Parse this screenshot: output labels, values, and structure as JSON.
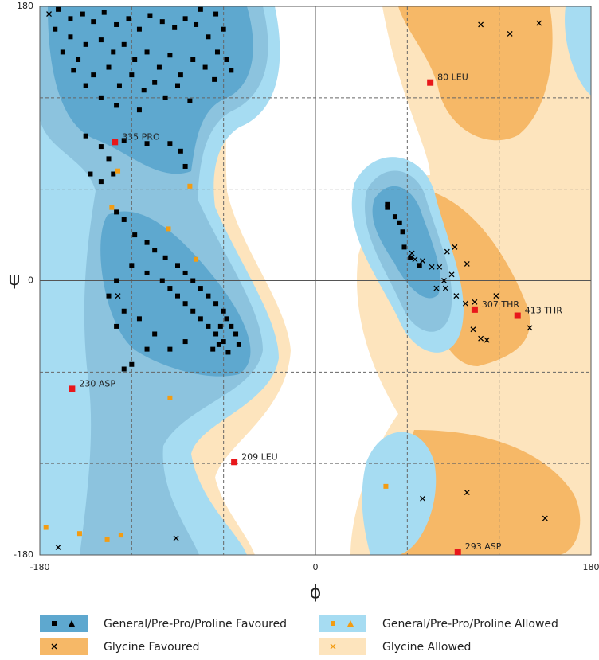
{
  "chart_data": {
    "type": "scatter",
    "x_label": "ϕ",
    "y_label": "ψ",
    "xlim": [
      -180,
      180
    ],
    "ylim": [
      -180,
      180
    ],
    "xticks": [
      -180,
      0,
      180
    ],
    "yticks": [
      -180,
      0,
      180
    ],
    "dashed_grid": [
      -120,
      -60,
      60,
      120
    ],
    "series": [
      {
        "name": "General/Pre-Pro/Proline Favoured",
        "color": "#000000",
        "marker": "square",
        "region_color": "#5ea8cf",
        "x": [
          -168,
          -160,
          -152,
          -145,
          -138,
          -130,
          -122,
          -115,
          -108,
          -100,
          -92,
          -85,
          -78,
          -70,
          -64,
          -58,
          -55,
          -160,
          -150,
          -140,
          -132,
          -125,
          -118,
          -110,
          -102,
          -95,
          -88,
          -80,
          -72,
          -66,
          -155,
          -145,
          -135,
          -128,
          -120,
          -112,
          -105,
          -98,
          -90,
          -82,
          -140,
          -130,
          -115,
          -150,
          -158,
          -165,
          -170,
          -60,
          -65,
          -75,
          -150,
          -140,
          -135,
          -125,
          -110,
          -95,
          -88,
          -85,
          -140,
          -132,
          -147,
          -130,
          -125,
          -118,
          -110,
          -105,
          -98,
          -90,
          -85,
          -80,
          -75,
          -70,
          -65,
          -60,
          -58,
          -55,
          -52,
          -60,
          -65,
          -70,
          -75,
          -80,
          -85,
          -90,
          -95,
          -100,
          -110,
          -120,
          -130,
          -135,
          -125,
          -115,
          -105,
          -95,
          -85,
          -120,
          -130,
          -110,
          -57,
          -63,
          -67,
          -62,
          -50,
          -125,
          47,
          52,
          55,
          57,
          58,
          62,
          47,
          68
        ],
        "y": [
          178,
          172,
          175,
          170,
          176,
          168,
          172,
          165,
          174,
          170,
          166,
          172,
          168,
          160,
          150,
          145,
          138,
          160,
          155,
          158,
          150,
          155,
          145,
          150,
          140,
          148,
          135,
          145,
          140,
          132,
          145,
          135,
          140,
          128,
          135,
          125,
          130,
          120,
          128,
          118,
          120,
          115,
          112,
          128,
          138,
          150,
          165,
          165,
          175,
          178,
          95,
          88,
          80,
          92,
          90,
          90,
          85,
          75,
          65,
          70,
          70,
          45,
          40,
          30,
          25,
          20,
          15,
          10,
          5,
          0,
          -5,
          -10,
          -15,
          -20,
          -25,
          -30,
          -35,
          -40,
          -35,
          -30,
          -25,
          -20,
          -15,
          -10,
          -5,
          0,
          5,
          10,
          0,
          -10,
          -20,
          -25,
          -35,
          -45,
          -40,
          -55,
          -30,
          -45,
          -47,
          -42,
          -45,
          -30,
          -42,
          -58,
          48,
          42,
          38,
          32,
          22,
          15,
          50,
          10
        ]
      },
      {
        "name": "General/Pre-Pro/Proline Allowed",
        "color": "#f39c12",
        "marker": "square",
        "region_color": "#a6dcf2",
        "x": [
          -129,
          -133,
          -96,
          -78,
          -95,
          46,
          -176,
          -154,
          -136,
          -127,
          -82
        ],
        "y": [
          72,
          48,
          34,
          14,
          -77,
          -135,
          -162,
          -166,
          -170,
          -167,
          62
        ]
      },
      {
        "name": "Glycine Favoured",
        "color": "#000000",
        "marker": "cross",
        "region_color": "#f6b867",
        "x": [
          -174,
          108,
          127,
          146,
          63,
          70,
          76,
          81,
          84,
          79,
          85,
          89,
          91,
          86,
          99,
          92,
          98,
          104,
          118,
          103,
          108,
          112,
          140,
          70,
          99,
          150,
          -91,
          -168,
          -129,
          65
        ],
        "y": [
          175,
          168,
          162,
          169,
          18,
          13,
          9,
          9,
          0,
          -5,
          -5,
          4,
          22,
          19,
          11,
          -10,
          -15,
          -14,
          -10,
          -32,
          -38,
          -39,
          -31,
          -143,
          -139,
          -156,
          -169,
          -175,
          -10,
          14
        ]
      },
      {
        "name": "Glycine Allowed",
        "color": "#f39c12",
        "marker": "cross",
        "region_color": "#fde4bd",
        "x": [],
        "y": []
      },
      {
        "color": "#e8171b",
        "marker": "square",
        "labels": [
          "80 LEU",
          "335 PRO",
          "230 ASP",
          "209 LEU",
          "307 THR",
          "413 THR",
          "293 ASP"
        ],
        "x": [
          75,
          -131,
          -159,
          -53,
          104,
          132,
          93
        ],
        "y": [
          130,
          91,
          -71,
          -119,
          -19,
          -23,
          -178
        ]
      }
    ]
  }
}
